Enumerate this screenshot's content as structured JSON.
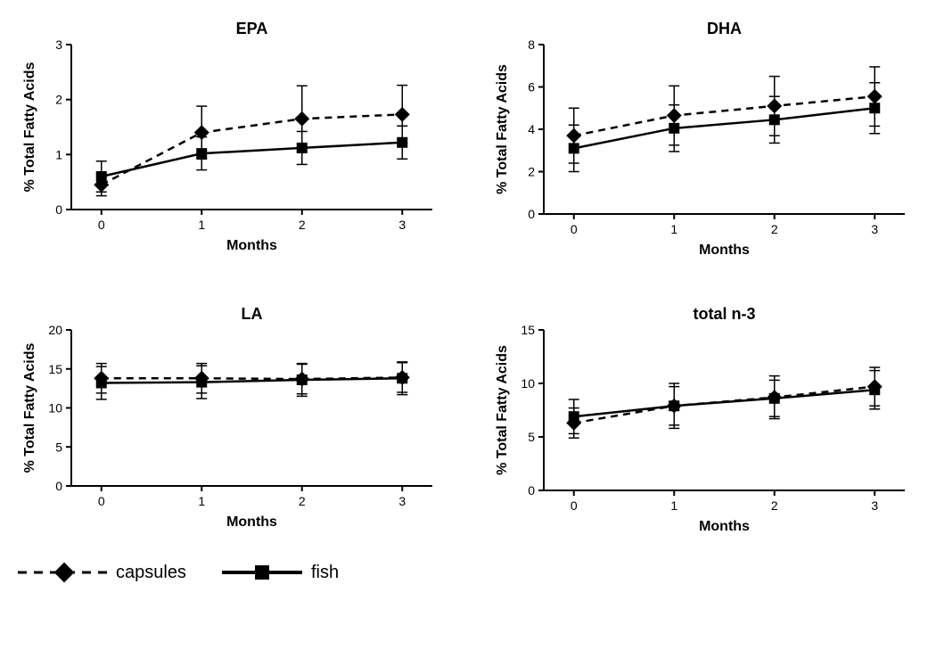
{
  "global": {
    "xlabel": "Months",
    "ylabel": "% Total Fatty Acids",
    "x_values": [
      0,
      1,
      2,
      3
    ],
    "xlim": [
      -0.3,
      3.3
    ],
    "line_color": "#000000",
    "capsules_dash": "8,6",
    "fish_dash": "none",
    "capsules_marker": "diamond",
    "fish_marker": "square",
    "marker_size": 6,
    "line_width": 2.5,
    "error_width": 1.5,
    "axis_width": 2,
    "title_fontsize": 18,
    "title_fontweight": "bold",
    "label_fontsize": 16,
    "label_fontweight": "bold",
    "tick_fontsize": 14,
    "background_color": "#ffffff"
  },
  "panels": [
    {
      "title": "EPA",
      "ylim": [
        0,
        3
      ],
      "ytick_step": 1,
      "capsules": {
        "y": [
          0.45,
          1.4,
          1.65,
          1.73
        ],
        "err": [
          0.2,
          0.48,
          0.6,
          0.53
        ]
      },
      "fish": {
        "y": [
          0.6,
          1.02,
          1.12,
          1.22
        ],
        "err": [
          0.28,
          0.3,
          0.3,
          0.3
        ]
      }
    },
    {
      "title": "DHA",
      "ylim": [
        0,
        8
      ],
      "ytick_step": 2,
      "capsules": {
        "y": [
          3.7,
          4.65,
          5.1,
          5.55
        ],
        "err": [
          1.3,
          1.4,
          1.4,
          1.4
        ]
      },
      "fish": {
        "y": [
          3.1,
          4.05,
          4.45,
          5.0
        ],
        "err": [
          1.1,
          1.1,
          1.1,
          1.2
        ]
      }
    },
    {
      "title": "LA",
      "ylim": [
        0,
        20
      ],
      "ytick_step": 5,
      "capsules": {
        "y": [
          13.8,
          13.8,
          13.7,
          13.9
        ],
        "err": [
          1.9,
          1.9,
          1.9,
          1.9
        ]
      },
      "fish": {
        "y": [
          13.2,
          13.3,
          13.6,
          13.8
        ],
        "err": [
          2.1,
          2.1,
          2.1,
          2.1
        ]
      }
    },
    {
      "title": "total n-3",
      "ylim": [
        0,
        15
      ],
      "ytick_step": 5,
      "capsules": {
        "y": [
          6.3,
          7.9,
          8.7,
          9.7
        ],
        "err": [
          1.4,
          1.8,
          2.0,
          1.8
        ]
      },
      "fish": {
        "y": [
          6.9,
          7.9,
          8.6,
          9.4
        ],
        "err": [
          1.6,
          2.1,
          1.7,
          1.8
        ]
      }
    }
  ],
  "legend": {
    "items": [
      {
        "label": "capsules",
        "marker": "diamond",
        "dash": "8,6"
      },
      {
        "label": "fish",
        "marker": "square",
        "dash": "none"
      }
    ]
  }
}
